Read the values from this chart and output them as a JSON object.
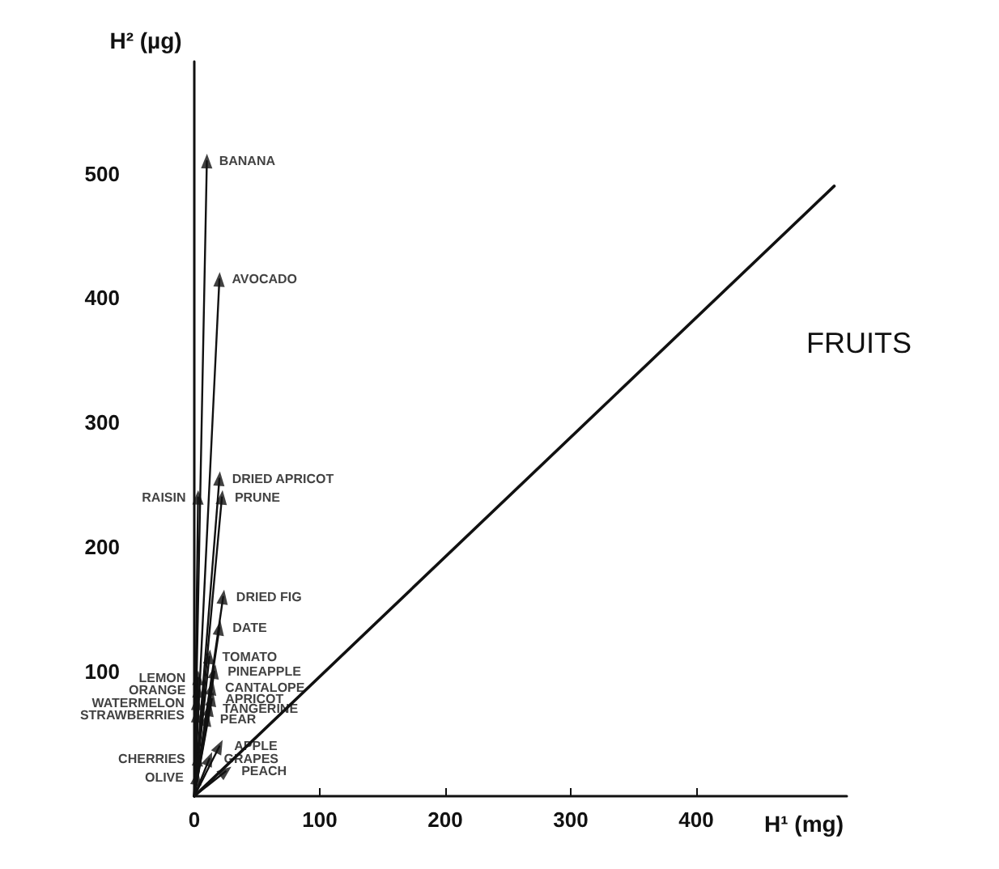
{
  "chart_data": {
    "type": "scatter",
    "xlabel": "H¹ (mg)",
    "ylabel": "H² (µg)",
    "annotations": [
      "FRUITS"
    ],
    "xlim": [
      0,
      520
    ],
    "ylim": [
      0,
      590
    ],
    "xticks": [
      0,
      100,
      200,
      300,
      400
    ],
    "yticks": [
      100,
      200,
      300,
      400,
      500
    ],
    "grid": false,
    "series": [
      {
        "marker": "triangle",
        "x": [
          10,
          20,
          20,
          3,
          22,
          23,
          20,
          12,
          16,
          3,
          14,
          3,
          14,
          2,
          12,
          2,
          10,
          20,
          3,
          12,
          25,
          2
        ],
        "values": [
          510,
          415,
          255,
          240,
          240,
          160,
          135,
          112,
          100,
          95,
          87,
          85,
          78,
          75,
          70,
          65,
          62,
          40,
          30,
          30,
          20,
          15
        ],
        "value_labels": [
          "BANANA",
          "AVOCADO",
          "DRIED APRICOT",
          "RAISIN",
          "PRUNE",
          "DRIED FIG",
          "DATE",
          "TOMATO",
          "PINEAPPLE",
          "LEMON",
          "CANTALOPE",
          "ORANGE",
          "APRICOT",
          "WATERMELON",
          "TANGERINE",
          "STRAWBERRIES",
          "PEAR",
          "APPLE",
          "CHERRIES",
          "GRAPES",
          "PEACH",
          "OLIVE"
        ]
      },
      {
        "type": "line",
        "x": [
          0,
          510
        ],
        "values": [
          0,
          490
        ]
      }
    ]
  }
}
